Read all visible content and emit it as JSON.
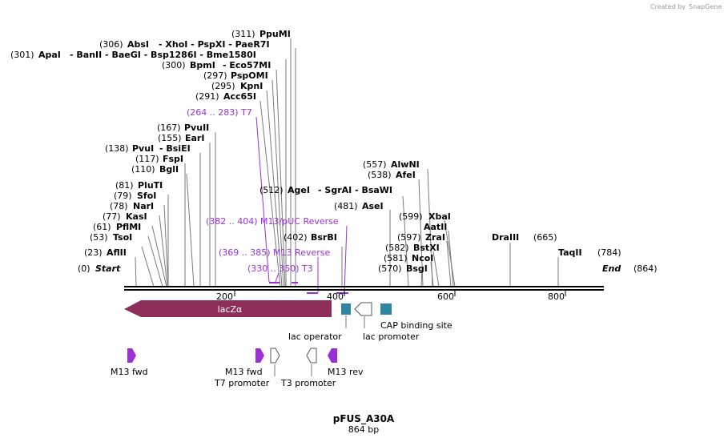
{
  "credit": {
    "prefix": "Created by",
    "brand": "SnapGene"
  },
  "map_title": "pFUS_A30A",
  "map_length_label": "864 bp",
  "sequence_length": 864,
  "axis_ticks": [
    "200",
    "400",
    "600",
    "800"
  ],
  "ends": {
    "start_pos": "(0)",
    "start_label": "Start",
    "end_label": "End",
    "end_pos": "(864)"
  },
  "sites": [
    {
      "pos": "(23)",
      "name": "AflII"
    },
    {
      "pos": "(53)",
      "name": "TsoI"
    },
    {
      "pos": "(61)",
      "name": "PflMI"
    },
    {
      "pos": "(77)",
      "name": "KasI"
    },
    {
      "pos": "(78)",
      "name": "NarI"
    },
    {
      "pos": "(79)",
      "name": "SfoI"
    },
    {
      "pos": "(81)",
      "name": "PluTI"
    },
    {
      "pos": "(110)",
      "name": "BglI"
    },
    {
      "pos": "(117)",
      "name": "FspI"
    },
    {
      "pos": "(138)",
      "name": "PvuI",
      "extra": "- BsiEI"
    },
    {
      "pos": "(155)",
      "name": "EarI"
    },
    {
      "pos": "(167)",
      "name": "PvuII"
    },
    {
      "pos": "(291)",
      "name": "Acc65I"
    },
    {
      "pos": "(295)",
      "name": "KpnI"
    },
    {
      "pos": "(297)",
      "name": "PspOMI"
    },
    {
      "pos": "(300)",
      "name": "BpmI",
      "extra": "- Eco57MI"
    },
    {
      "pos": "(301)",
      "name": "ApaI",
      "extra": "- BanII - BaeGI - Bsp1286I - Bme1580I"
    },
    {
      "pos": "(306)",
      "name": "AbsI",
      "extra": "- XhoI - PspXI - PaeR7I"
    },
    {
      "pos": "(311)",
      "name": "PpuMI"
    },
    {
      "pos": "(402)",
      "name": "BsrBI"
    },
    {
      "pos": "(481)",
      "name": "AseI"
    },
    {
      "pos": "(512)",
      "name": "AgeI",
      "extra": "- SgrAI - BsaWI"
    },
    {
      "pos": "(538)",
      "name": "AfeI"
    },
    {
      "pos": "(557)",
      "name": "AlwNI"
    },
    {
      "pos": "(570)",
      "name": "BsgI"
    },
    {
      "pos": "(581)",
      "name": "NcoI"
    },
    {
      "pos": "(582)",
      "name": "BstXI"
    },
    {
      "pos": "(597)",
      "name": "ZraI"
    },
    {
      "pos": "",
      "name": "AatII"
    },
    {
      "pos": "(599)",
      "name": "XbaI"
    },
    {
      "pos": "",
      "name": "DraIII"
    },
    {
      "pos": "(665)",
      "name": ""
    },
    {
      "pos": "(784)",
      "name": "TaqII"
    }
  ],
  "primer_labels": [
    "(264 .. 283)  T7",
    "(382 .. 404)  M13/pUC Reverse",
    "(369 .. 385)  M13 Reverse",
    "(330 .. 350)  T3"
  ],
  "features": {
    "lacz": "lacZα",
    "lac_operator": "lac operator",
    "lac_promoter": "lac promoter",
    "cap_site": "CAP binding site",
    "m13_fwd_1": "M13 fwd",
    "m13_fwd_2": "M13 fwd",
    "t7_promoter": "T7 promoter",
    "t3_promoter": "T3 promoter",
    "m13_rev": "M13 rev"
  },
  "colors": {
    "primer": "#9b30d9",
    "lacz": "#8e2f5a",
    "small_feature": "#2e86a0",
    "line": "#7a7a7a"
  }
}
